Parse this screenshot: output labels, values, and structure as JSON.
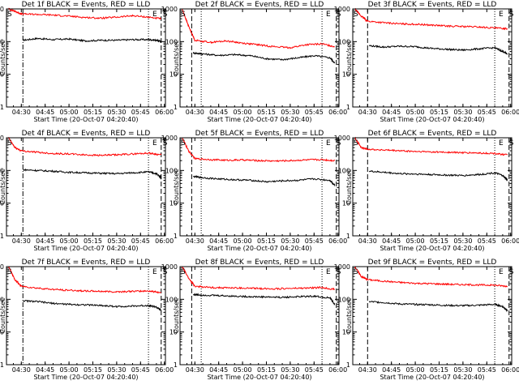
{
  "figure": {
    "x_tick_labels": [
      "04:30",
      "04:45",
      "05:00",
      "05:15",
      "05:30",
      "05:45",
      "06:00"
    ],
    "y_tick_labels": [
      "1",
      "10",
      "100",
      "1000"
    ],
    "colors": {
      "events": "#000000",
      "lld": "#ff0000",
      "axes": "#000000",
      "background": "#ffffff"
    }
  },
  "chart_data": [
    {
      "type": "line",
      "title": "Det 1f BLACK = Events, RED = LLD",
      "xlabel": "Start Time (20-Oct-07 04:20:40)",
      "ylabel": "Counts/sec",
      "y_scale": "log",
      "x_unit": "UT time",
      "xlim": [
        "04:20:40",
        "06:00:40"
      ],
      "ylim": [
        1,
        1000
      ],
      "x_tick_labels": [
        "04:30",
        "04:45",
        "05:00",
        "05:15",
        "05:30",
        "05:45",
        "06:00"
      ],
      "y_tick_labels": [
        "1",
        "10",
        "100",
        "1000"
      ],
      "markers": {
        "S": "04:20:40",
        "E": "05:52",
        "S2": "06:00"
      },
      "vlines": [
        {
          "time": "04:31",
          "style": "dash-dot"
        },
        {
          "time": "05:50",
          "style": "dotted"
        },
        {
          "time": "05:58",
          "style": "dashed"
        }
      ],
      "series": [
        {
          "name": "Events",
          "color": "#000000",
          "x": [
            "04:31",
            "04:40",
            "04:50",
            "05:00",
            "05:10",
            "05:20",
            "05:30",
            "05:40",
            "05:50",
            "05:55",
            "05:58"
          ],
          "y": [
            110,
            125,
            115,
            120,
            105,
            110,
            110,
            115,
            115,
            110,
            100
          ]
        },
        {
          "name": "LLD",
          "color": "#ff0000",
          "x": [
            "04:22",
            "04:26",
            "04:30",
            "04:40",
            "04:50",
            "05:00",
            "05:10",
            "05:20",
            "05:30",
            "05:40",
            "05:50",
            "05:58"
          ],
          "y": [
            1000,
            850,
            700,
            680,
            650,
            600,
            550,
            520,
            560,
            620,
            560,
            500
          ]
        }
      ]
    },
    {
      "type": "line",
      "title": "Det 2f BLACK = Events, RED = LLD",
      "xlabel": "Start Time (20-Oct-07 04:20:40)",
      "ylabel": "Counts/sec",
      "y_scale": "log",
      "x_unit": "UT time",
      "xlim": [
        "04:20:40",
        "06:00:40"
      ],
      "ylim": [
        1,
        1000
      ],
      "x_tick_labels": [
        "04:30",
        "04:45",
        "05:00",
        "05:15",
        "05:30",
        "05:45",
        "06:00"
      ],
      "y_tick_labels": [
        "1",
        "10",
        "100",
        "1000"
      ],
      "markers": {
        "S": "04:20:40",
        "E": "05:52",
        "S2": "06:00"
      },
      "vlines": [
        {
          "time": "04:28",
          "style": "dashed"
        },
        {
          "time": "04:34",
          "style": "dotted"
        },
        {
          "time": "05:50",
          "style": "dotted"
        },
        {
          "time": "05:59",
          "style": "dashed"
        }
      ],
      "series": [
        {
          "name": "Events",
          "color": "#000000",
          "x": [
            "04:29",
            "04:35",
            "04:45",
            "04:55",
            "05:05",
            "05:15",
            "05:25",
            "05:35",
            "05:45",
            "05:55",
            "05:58"
          ],
          "y": [
            45,
            42,
            38,
            40,
            37,
            30,
            28,
            32,
            37,
            32,
            22
          ]
        },
        {
          "name": "LLD",
          "color": "#ff0000",
          "x": [
            "04:22",
            "04:26",
            "04:30",
            "04:40",
            "04:50",
            "05:00",
            "05:10",
            "05:20",
            "05:30",
            "05:40",
            "05:50",
            "05:58"
          ],
          "y": [
            1000,
            300,
            110,
            95,
            105,
            90,
            80,
            70,
            65,
            80,
            85,
            70
          ]
        }
      ]
    },
    {
      "type": "line",
      "title": "Det 3f BLACK = Events, RED = LLD",
      "xlabel": "Start Time (20-Oct-07 04:20:40)",
      "ylabel": "Counts/sec",
      "y_scale": "log",
      "x_unit": "UT time",
      "xlim": [
        "04:20:40",
        "06:00:40"
      ],
      "ylim": [
        1,
        1000
      ],
      "x_tick_labels": [
        "04:30",
        "04:45",
        "05:00",
        "05:15",
        "05:30",
        "05:45",
        "06:00"
      ],
      "y_tick_labels": [
        "1",
        "10",
        "100",
        "1000"
      ],
      "markers": {
        "S": "04:20:40",
        "E": "05:52",
        "S2": "06:00"
      },
      "vlines": [
        {
          "time": "04:30",
          "style": "dashed"
        },
        {
          "time": "05:50",
          "style": "dotted"
        },
        {
          "time": "05:59",
          "style": "dashed"
        }
      ],
      "series": [
        {
          "name": "Events",
          "color": "#000000",
          "x": [
            "04:31",
            "04:40",
            "04:50",
            "05:00",
            "05:10",
            "05:20",
            "05:30",
            "05:40",
            "05:50",
            "05:55",
            "05:58"
          ],
          "y": [
            75,
            68,
            72,
            70,
            62,
            58,
            55,
            60,
            65,
            50,
            42
          ]
        },
        {
          "name": "LLD",
          "color": "#ff0000",
          "x": [
            "04:22",
            "04:26",
            "04:30",
            "04:40",
            "04:50",
            "05:00",
            "05:10",
            "05:20",
            "05:30",
            "05:40",
            "05:50",
            "05:58"
          ],
          "y": [
            1000,
            600,
            420,
            380,
            350,
            340,
            320,
            300,
            290,
            280,
            260,
            250
          ]
        }
      ]
    },
    {
      "type": "line",
      "title": "Det 4f BLACK = Events, RED = LLD",
      "xlabel": "Start Time (20-Oct-07 04:20:40)",
      "ylabel": "Counts/sec",
      "y_scale": "log",
      "x_unit": "UT time",
      "xlim": [
        "04:20:40",
        "06:00:40"
      ],
      "ylim": [
        1,
        1000
      ],
      "x_tick_labels": [
        "04:30",
        "04:45",
        "05:00",
        "05:15",
        "05:30",
        "05:45",
        "06:00"
      ],
      "y_tick_labels": [
        "1",
        "10",
        "100",
        "1000"
      ],
      "markers": {
        "S": "04:20:40",
        "E": "05:52",
        "S2": "06:00"
      },
      "vlines": [
        {
          "time": "04:31",
          "style": "dash-dot"
        },
        {
          "time": "05:50",
          "style": "dotted"
        },
        {
          "time": "05:58",
          "style": "dashed"
        }
      ],
      "series": [
        {
          "name": "Events",
          "color": "#000000",
          "x": [
            "04:31",
            "04:40",
            "04:50",
            "05:00",
            "05:10",
            "05:20",
            "05:30",
            "05:40",
            "05:50",
            "05:55",
            "05:58"
          ],
          "y": [
            105,
            100,
            95,
            88,
            85,
            82,
            80,
            85,
            90,
            80,
            60
          ]
        },
        {
          "name": "LLD",
          "color": "#ff0000",
          "x": [
            "04:22",
            "04:26",
            "04:30",
            "04:40",
            "04:50",
            "05:00",
            "05:10",
            "05:20",
            "05:30",
            "05:40",
            "05:50",
            "05:58"
          ],
          "y": [
            1000,
            500,
            400,
            360,
            330,
            320,
            300,
            290,
            300,
            320,
            340,
            300
          ]
        }
      ]
    },
    {
      "type": "line",
      "title": "Det 5f BLACK = Events, RED = LLD",
      "xlabel": "Start Time (20-Oct-07 04:20:40)",
      "ylabel": "Counts/sec",
      "y_scale": "log",
      "x_unit": "UT time",
      "xlim": [
        "04:20:40",
        "06:00:40"
      ],
      "ylim": [
        1,
        1000
      ],
      "x_tick_labels": [
        "04:30",
        "04:45",
        "05:00",
        "05:15",
        "05:30",
        "05:45",
        "06:00"
      ],
      "y_tick_labels": [
        "1",
        "10",
        "100",
        "1000"
      ],
      "markers": {
        "S": "04:20:40",
        "E": "05:52",
        "S2": "06:00"
      },
      "vlines": [
        {
          "time": "04:28",
          "style": "dashed"
        },
        {
          "time": "04:34",
          "style": "dotted"
        },
        {
          "time": "05:50",
          "style": "dotted"
        },
        {
          "time": "05:59",
          "style": "dashed"
        }
      ],
      "series": [
        {
          "name": "Events",
          "color": "#000000",
          "x": [
            "04:29",
            "04:35",
            "04:45",
            "04:55",
            "05:05",
            "05:15",
            "05:25",
            "05:35",
            "05:45",
            "05:55",
            "05:58"
          ],
          "y": [
            65,
            60,
            55,
            52,
            50,
            45,
            48,
            50,
            55,
            50,
            35
          ]
        },
        {
          "name": "LLD",
          "color": "#ff0000",
          "x": [
            "04:22",
            "04:26",
            "04:30",
            "04:40",
            "04:50",
            "05:00",
            "05:10",
            "05:20",
            "05:30",
            "05:40",
            "05:50",
            "05:58"
          ],
          "y": [
            1000,
            400,
            230,
            215,
            205,
            210,
            200,
            195,
            200,
            210,
            215,
            200
          ]
        }
      ]
    },
    {
      "type": "line",
      "title": "Det 6f BLACK = Events, RED = LLD",
      "xlabel": "Start Time (20-Oct-07 04:20:40)",
      "ylabel": "Counts/sec",
      "y_scale": "log",
      "x_unit": "UT time",
      "xlim": [
        "04:20:40",
        "06:00:40"
      ],
      "ylim": [
        1,
        1000
      ],
      "x_tick_labels": [
        "04:30",
        "04:45",
        "05:00",
        "05:15",
        "05:30",
        "05:45",
        "06:00"
      ],
      "y_tick_labels": [
        "1",
        "10",
        "100",
        "1000"
      ],
      "markers": {
        "S": "04:20:40",
        "E": "05:52",
        "S2": "06:00"
      },
      "vlines": [
        {
          "time": "04:30",
          "style": "dashed"
        },
        {
          "time": "05:50",
          "style": "dotted"
        },
        {
          "time": "05:59",
          "style": "dashed"
        }
      ],
      "series": [
        {
          "name": "Events",
          "color": "#000000",
          "x": [
            "04:31",
            "04:40",
            "04:50",
            "05:00",
            "05:10",
            "05:20",
            "05:30",
            "05:40",
            "05:50",
            "05:55",
            "05:58"
          ],
          "y": [
            95,
            88,
            80,
            78,
            75,
            72,
            70,
            75,
            85,
            70,
            50
          ]
        },
        {
          "name": "LLD",
          "color": "#ff0000",
          "x": [
            "04:22",
            "04:26",
            "04:30",
            "04:40",
            "04:50",
            "05:00",
            "05:10",
            "05:20",
            "05:30",
            "05:40",
            "05:50",
            "05:58"
          ],
          "y": [
            1000,
            500,
            450,
            420,
            400,
            380,
            370,
            360,
            350,
            340,
            330,
            300
          ]
        }
      ]
    },
    {
      "type": "line",
      "title": "Det 7f BLACK = Events, RED = LLD",
      "xlabel": "Start Time (20-Oct-07 04:20:40)",
      "ylabel": "Counts/sec",
      "y_scale": "log",
      "x_unit": "UT time",
      "xlim": [
        "04:20:40",
        "06:00:40"
      ],
      "ylim": [
        1,
        1000
      ],
      "x_tick_labels": [
        "04:30",
        "04:45",
        "05:00",
        "05:15",
        "05:30",
        "05:45",
        "06:00"
      ],
      "y_tick_labels": [
        "1",
        "10",
        "100",
        "1000"
      ],
      "markers": {
        "S": "04:20:40",
        "E": "05:52",
        "S2": "06:00"
      },
      "vlines": [
        {
          "time": "04:31",
          "style": "dash-dot"
        },
        {
          "time": "05:50",
          "style": "dotted"
        },
        {
          "time": "05:58",
          "style": "dashed"
        }
      ],
      "series": [
        {
          "name": "Events",
          "color": "#000000",
          "x": [
            "04:31",
            "04:40",
            "04:50",
            "05:00",
            "05:10",
            "05:20",
            "05:30",
            "05:40",
            "05:50",
            "05:55",
            "05:58"
          ],
          "y": [
            90,
            85,
            75,
            70,
            68,
            65,
            60,
            62,
            65,
            58,
            45
          ]
        },
        {
          "name": "LLD",
          "color": "#ff0000",
          "x": [
            "04:22",
            "04:26",
            "04:30",
            "04:40",
            "04:50",
            "05:00",
            "05:10",
            "05:20",
            "05:30",
            "05:40",
            "05:50",
            "05:58"
          ],
          "y": [
            1000,
            400,
            250,
            220,
            200,
            190,
            180,
            175,
            170,
            175,
            180,
            160
          ]
        }
      ]
    },
    {
      "type": "line",
      "title": "Det 8f BLACK = Events, RED = LLD",
      "xlabel": "Start Time (20-Oct-07 04:20:40)",
      "ylabel": "Counts/sec",
      "y_scale": "log",
      "x_unit": "UT time",
      "xlim": [
        "04:20:40",
        "06:00:40"
      ],
      "ylim": [
        1,
        1000
      ],
      "x_tick_labels": [
        "04:30",
        "04:45",
        "05:00",
        "05:15",
        "05:30",
        "05:45",
        "06:00"
      ],
      "y_tick_labels": [
        "1",
        "10",
        "100",
        "1000"
      ],
      "markers": {
        "S": "04:20:40",
        "E": "05:52",
        "S2": "06:00"
      },
      "vlines": [
        {
          "time": "04:28",
          "style": "dashed"
        },
        {
          "time": "04:34",
          "style": "dotted"
        },
        {
          "time": "05:50",
          "style": "dotted"
        },
        {
          "time": "05:59",
          "style": "dashed"
        }
      ],
      "series": [
        {
          "name": "Events",
          "color": "#000000",
          "x": [
            "04:29",
            "04:35",
            "04:45",
            "04:55",
            "05:05",
            "05:15",
            "05:25",
            "05:35",
            "05:45",
            "05:55",
            "05:58"
          ],
          "y": [
            140,
            135,
            130,
            125,
            120,
            118,
            115,
            120,
            125,
            110,
            70
          ]
        },
        {
          "name": "LLD",
          "color": "#ff0000",
          "x": [
            "04:22",
            "04:26",
            "04:30",
            "04:40",
            "04:50",
            "05:00",
            "05:10",
            "05:20",
            "05:30",
            "05:40",
            "05:50",
            "05:58"
          ],
          "y": [
            1000,
            450,
            250,
            230,
            225,
            220,
            215,
            210,
            215,
            220,
            230,
            200
          ]
        }
      ]
    },
    {
      "type": "line",
      "title": "Det 9f BLACK = Events, RED = LLD",
      "xlabel": "Start Time (20-Oct-07 04:20:40)",
      "ylabel": "Counts/sec",
      "y_scale": "log",
      "x_unit": "UT time",
      "xlim": [
        "04:20:40",
        "06:00:40"
      ],
      "ylim": [
        1,
        1000
      ],
      "x_tick_labels": [
        "04:30",
        "04:45",
        "05:00",
        "05:15",
        "05:30",
        "05:45",
        "06:00"
      ],
      "y_tick_labels": [
        "1",
        "10",
        "100",
        "1000"
      ],
      "markers": {
        "S": "04:20:40",
        "E": "05:52",
        "S2": "06:00"
      },
      "vlines": [
        {
          "time": "04:30",
          "style": "dashed"
        },
        {
          "time": "05:50",
          "style": "dotted"
        },
        {
          "time": "05:59",
          "style": "dashed"
        }
      ],
      "series": [
        {
          "name": "Events",
          "color": "#000000",
          "x": [
            "04:31",
            "04:40",
            "04:50",
            "05:00",
            "05:10",
            "05:20",
            "05:30",
            "05:40",
            "05:50",
            "05:55",
            "05:58"
          ],
          "y": [
            85,
            80,
            72,
            70,
            68,
            65,
            64,
            66,
            70,
            60,
            45
          ]
        },
        {
          "name": "LLD",
          "color": "#ff0000",
          "x": [
            "04:22",
            "04:26",
            "04:30",
            "04:40",
            "04:50",
            "05:00",
            "05:10",
            "05:20",
            "05:30",
            "05:40",
            "05:50",
            "05:58"
          ],
          "y": [
            1000,
            500,
            400,
            360,
            330,
            310,
            300,
            290,
            280,
            275,
            270,
            250
          ]
        }
      ]
    }
  ]
}
